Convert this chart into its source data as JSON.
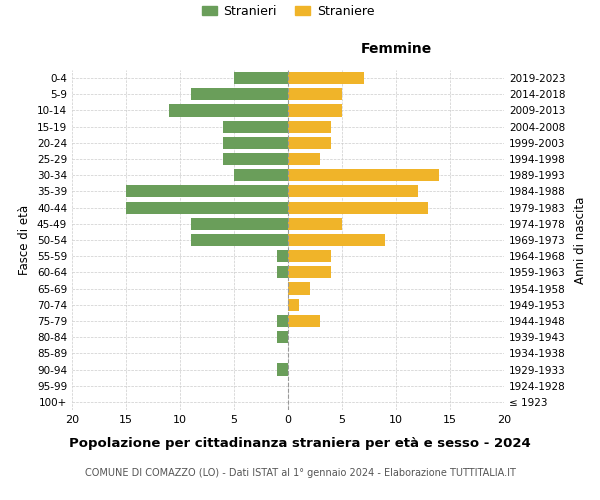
{
  "age_groups": [
    "100+",
    "95-99",
    "90-94",
    "85-89",
    "80-84",
    "75-79",
    "70-74",
    "65-69",
    "60-64",
    "55-59",
    "50-54",
    "45-49",
    "40-44",
    "35-39",
    "30-34",
    "25-29",
    "20-24",
    "15-19",
    "10-14",
    "5-9",
    "0-4"
  ],
  "birth_years": [
    "≤ 1923",
    "1924-1928",
    "1929-1933",
    "1934-1938",
    "1939-1943",
    "1944-1948",
    "1949-1953",
    "1954-1958",
    "1959-1963",
    "1964-1968",
    "1969-1973",
    "1974-1978",
    "1979-1983",
    "1984-1988",
    "1989-1993",
    "1994-1998",
    "1999-2003",
    "2004-2008",
    "2009-2013",
    "2014-2018",
    "2019-2023"
  ],
  "males": [
    0,
    0,
    1,
    0,
    1,
    1,
    0,
    0,
    1,
    1,
    9,
    9,
    15,
    15,
    5,
    6,
    6,
    6,
    11,
    9,
    5
  ],
  "females": [
    0,
    0,
    0,
    0,
    0,
    3,
    1,
    2,
    4,
    4,
    9,
    5,
    13,
    12,
    14,
    3,
    4,
    4,
    5,
    5,
    7
  ],
  "male_color": "#6a9e5a",
  "female_color": "#f0b429",
  "title": "Popolazione per cittadinanza straniera per età e sesso - 2024",
  "subtitle": "COMUNE DI COMAZZO (LO) - Dati ISTAT al 1° gennaio 2024 - Elaborazione TUTTITALIA.IT",
  "legend_male": "Stranieri",
  "legend_female": "Straniere",
  "xlabel_right": "Femmine",
  "ylabel_left": "Fasce di età",
  "ylabel_right": "Anni di nascita",
  "xlim": 20,
  "background_color": "#ffffff",
  "grid_color": "#cccccc"
}
